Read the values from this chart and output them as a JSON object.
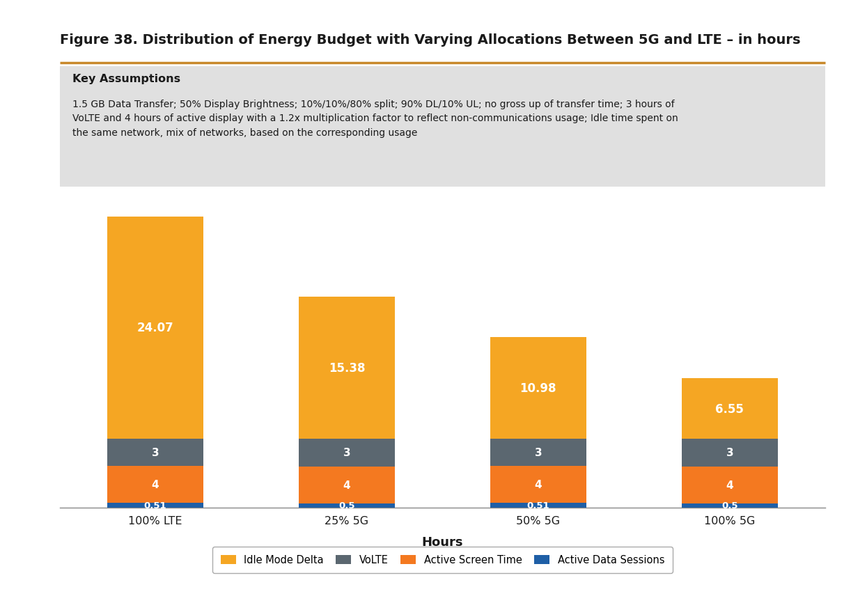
{
  "title": "Figure 38. Distribution of Energy Budget with Varying Allocations Between 5G and LTE – in hours",
  "key_assumptions_title": "Key Assumptions",
  "key_assumptions_text": "1.5 GB Data Transfer; 50% Display Brightness; 10%/10%/80% split; 90% DL/10% UL; no gross up of transfer time; 3 hours of\nVoLTE and 4 hours of active display with a 1.2x multiplication factor to reflect non-communications usage; Idle time spent on\nthe same network, mix of networks, based on the corresponding usage",
  "categories": [
    "100% LTE",
    "25% 5G",
    "50% 5G",
    "100% 5G"
  ],
  "xlabel": "Hours",
  "series": [
    {
      "name": "Active Data Sessions",
      "values": [
        0.51,
        0.5,
        0.51,
        0.5
      ],
      "color": "#1f5fa6"
    },
    {
      "name": "Active Screen Time",
      "values": [
        4,
        4,
        4,
        4
      ],
      "color": "#f47920"
    },
    {
      "name": "VoLTE",
      "values": [
        3,
        3,
        3,
        3
      ],
      "color": "#5b6770"
    },
    {
      "name": "Idle Mode Delta",
      "values": [
        24.07,
        15.38,
        10.98,
        6.55
      ],
      "color": "#f5a623"
    }
  ],
  "ylim": [
    0,
    34
  ],
  "background_color": "#ffffff",
  "assumption_bg_color": "#e0e0e0",
  "title_color": "#1a1a1a",
  "bar_width": 0.5,
  "label_fontsize_small": 9.5,
  "label_fontsize_mid": 11,
  "label_fontsize_large": 12,
  "orange_rule_color": "#c8882a",
  "legend_order": [
    "Idle Mode Delta",
    "VoLTE",
    "Active Screen Time",
    "Active Data Sessions"
  ]
}
